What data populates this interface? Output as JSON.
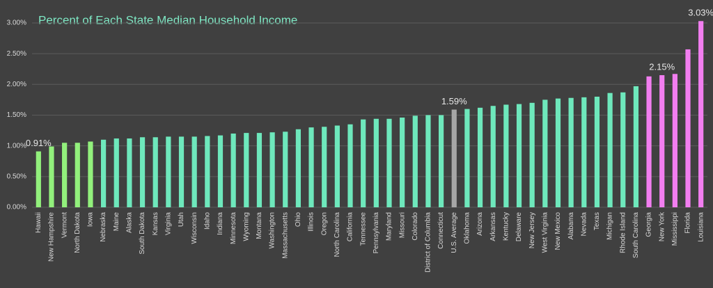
{
  "chart_data": {
    "type": "bar",
    "title": "Percent of Each State Median Household Income",
    "categories": [
      "Hawaii",
      "New Hampshire",
      "Vermont",
      "North Dakota",
      "Iowa",
      "Nebraska",
      "Maine",
      "Alaska",
      "South Dakota",
      "Kansas",
      "Virginia",
      "Utah",
      "Wisconsin",
      "Idaho",
      "Indiana",
      "Minnesota",
      "Wyoming",
      "Montana",
      "Washington",
      "Massachusetts",
      "Ohio",
      "Illinois",
      "Oregon",
      "North Carolina",
      "California",
      "Tennessee",
      "Pennsylvania",
      "Maryland",
      "Missouri",
      "Colorado",
      "District of Columbia",
      "Connecticut",
      "U.S. Average",
      "Oklahoma",
      "Arizona",
      "Arkansas",
      "Kentucky",
      "Delaware",
      "New Jersey",
      "West Virginia",
      "New Mexico",
      "Alabama",
      "Nevada",
      "Texas",
      "Michigan",
      "Rhode Island",
      "South Carolina",
      "Georgia",
      "New York",
      "Mississippi",
      "Florida",
      "Louisiana"
    ],
    "values": [
      0.91,
      0.99,
      1.05,
      1.05,
      1.07,
      1.1,
      1.12,
      1.12,
      1.14,
      1.14,
      1.15,
      1.15,
      1.15,
      1.16,
      1.17,
      1.2,
      1.21,
      1.21,
      1.22,
      1.23,
      1.27,
      1.3,
      1.31,
      1.33,
      1.35,
      1.43,
      1.44,
      1.44,
      1.46,
      1.49,
      1.5,
      1.5,
      1.59,
      1.6,
      1.62,
      1.65,
      1.67,
      1.68,
      1.7,
      1.75,
      1.77,
      1.78,
      1.79,
      1.8,
      1.86,
      1.87,
      1.97,
      2.13,
      2.15,
      2.17,
      2.57,
      3.03
    ],
    "value_labels": [
      "0.91%",
      null,
      null,
      null,
      null,
      null,
      null,
      null,
      null,
      null,
      null,
      null,
      null,
      null,
      null,
      null,
      null,
      null,
      null,
      null,
      null,
      null,
      null,
      null,
      null,
      null,
      null,
      null,
      null,
      null,
      null,
      null,
      "1.59%",
      null,
      null,
      null,
      null,
      null,
      null,
      null,
      null,
      null,
      null,
      null,
      null,
      null,
      null,
      null,
      "2.15%",
      null,
      null,
      "3.03%"
    ],
    "colors": [
      "#92f07c",
      "#92f07c",
      "#92f07c",
      "#92f07c",
      "#92f07c",
      "#6ee8bc",
      "#6ee8bc",
      "#6ee8bc",
      "#6ee8bc",
      "#6ee8bc",
      "#6ee8bc",
      "#6ee8bc",
      "#6ee8bc",
      "#6ee8bc",
      "#6ee8bc",
      "#6ee8bc",
      "#6ee8bc",
      "#6ee8bc",
      "#6ee8bc",
      "#6ee8bc",
      "#6ee8bc",
      "#6ee8bc",
      "#6ee8bc",
      "#6ee8bc",
      "#6ee8bc",
      "#6ee8bc",
      "#6ee8bc",
      "#6ee8bc",
      "#6ee8bc",
      "#6ee8bc",
      "#6ee8bc",
      "#6ee8bc",
      "#a6a6a6",
      "#6ee8bc",
      "#6ee8bc",
      "#6ee8bc",
      "#6ee8bc",
      "#6ee8bc",
      "#6ee8bc",
      "#6ee8bc",
      "#6ee8bc",
      "#6ee8bc",
      "#6ee8bc",
      "#6ee8bc",
      "#6ee8bc",
      "#6ee8bc",
      "#6ee8bc",
      "#f27ef0",
      "#f27ef0",
      "#f27ef0",
      "#f27ef0",
      "#f27ef0"
    ],
    "ylim": [
      0,
      3.09
    ],
    "yticks": [
      {
        "value": 0,
        "label": "0.00%"
      },
      {
        "value": 0.5,
        "label": "0.50%"
      },
      {
        "value": 1,
        "label": "1.00%"
      },
      {
        "value": 1.5,
        "label": "1.50%"
      },
      {
        "value": 2,
        "label": "2.00%"
      },
      {
        "value": 2.5,
        "label": "2.50%"
      },
      {
        "value": 3,
        "label": "3.00%"
      }
    ],
    "grid": true
  }
}
